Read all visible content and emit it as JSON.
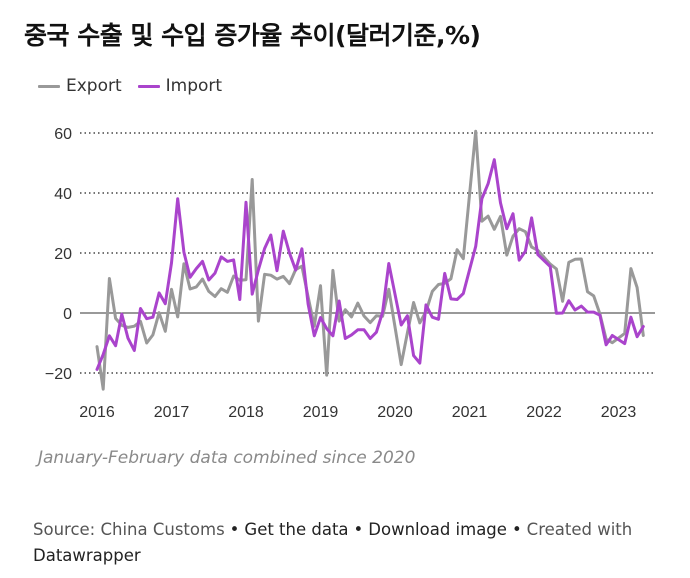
{
  "title": "중국 수출 및 수입 증가율 추이(달러기준,%)",
  "legend": [
    {
      "name": "Export",
      "color": "#999999"
    },
    {
      "name": "Import",
      "color": "#aa44cc"
    }
  ],
  "note": "January-February data combined since 2020",
  "source": {
    "prefix": "Source: China Customs",
    "get_data": "Get the data",
    "download": "Download image",
    "created_with": "Created with",
    "brand": "Datawrapper"
  },
  "chart_data": {
    "type": "line",
    "title": "중국 수출 및 수입 증가율 추이(달러기준,%)",
    "ylim": [
      -25,
      62
    ],
    "y_ticks": [
      -20,
      0,
      20,
      40,
      60
    ],
    "x_ticks": [
      "2016",
      "2017",
      "2018",
      "2019",
      "2020",
      "2021",
      "2022",
      "2023"
    ],
    "grid": "horizontal dotted",
    "legend_position": "top-left",
    "series": [
      {
        "name": "Export",
        "color": "#999999",
        "points": [
          [
            "2016-01",
            -11.2
          ],
          [
            "2016-02",
            -25.4
          ],
          [
            "2016-03",
            11.5
          ],
          [
            "2016-04",
            -1.8
          ],
          [
            "2016-05",
            -4.1
          ],
          [
            "2016-06",
            -4.8
          ],
          [
            "2016-07",
            -4.4
          ],
          [
            "2016-08",
            -2.8
          ],
          [
            "2016-09",
            -10.0
          ],
          [
            "2016-10",
            -7.3
          ],
          [
            "2016-11",
            0.1
          ],
          [
            "2016-12",
            -6.1
          ],
          [
            "2017-01",
            7.9
          ],
          [
            "2017-02",
            -1.3
          ],
          [
            "2017-03",
            16.4
          ],
          [
            "2017-04",
            8.0
          ],
          [
            "2017-05",
            8.7
          ],
          [
            "2017-06",
            11.3
          ],
          [
            "2017-07",
            7.2
          ],
          [
            "2017-08",
            5.5
          ],
          [
            "2017-09",
            8.1
          ],
          [
            "2017-10",
            6.9
          ],
          [
            "2017-11",
            12.3
          ],
          [
            "2017-12",
            10.9
          ],
          [
            "2018-01",
            11.1
          ],
          [
            "2018-02",
            44.5
          ],
          [
            "2018-03",
            -2.7
          ],
          [
            "2018-04",
            12.9
          ],
          [
            "2018-05",
            12.6
          ],
          [
            "2018-06",
            11.3
          ],
          [
            "2018-07",
            12.2
          ],
          [
            "2018-08",
            9.8
          ],
          [
            "2018-09",
            14.5
          ],
          [
            "2018-10",
            15.6
          ],
          [
            "2018-11",
            5.4
          ],
          [
            "2018-12",
            -4.4
          ],
          [
            "2019-01",
            9.1
          ],
          [
            "2019-02",
            -20.7
          ],
          [
            "2019-03",
            14.2
          ],
          [
            "2019-04",
            -2.7
          ],
          [
            "2019-05",
            1.1
          ],
          [
            "2019-06",
            -1.3
          ],
          [
            "2019-07",
            3.3
          ],
          [
            "2019-08",
            -1.0
          ],
          [
            "2019-09",
            -3.2
          ],
          [
            "2019-10",
            -0.9
          ],
          [
            "2019-11",
            -1.1
          ],
          [
            "2019-12",
            7.9
          ],
          [
            "2020-02",
            -17.2
          ],
          [
            "2020-03",
            -6.6
          ],
          [
            "2020-04",
            3.5
          ],
          [
            "2020-05",
            -3.3
          ],
          [
            "2020-06",
            0.5
          ],
          [
            "2020-07",
            7.2
          ],
          [
            "2020-08",
            9.5
          ],
          [
            "2020-09",
            9.9
          ],
          [
            "2020-10",
            11.4
          ],
          [
            "2020-11",
            21.1
          ],
          [
            "2020-12",
            18.1
          ],
          [
            "2021-02",
            60.6
          ],
          [
            "2021-03",
            30.6
          ],
          [
            "2021-04",
            32.3
          ],
          [
            "2021-05",
            27.9
          ],
          [
            "2021-06",
            32.2
          ],
          [
            "2021-07",
            19.3
          ],
          [
            "2021-08",
            25.6
          ],
          [
            "2021-09",
            28.1
          ],
          [
            "2021-10",
            27.1
          ],
          [
            "2021-11",
            22.0
          ],
          [
            "2021-12",
            20.9
          ],
          [
            "2022-02",
            16.3
          ],
          [
            "2022-03",
            14.7
          ],
          [
            "2022-04",
            3.9
          ],
          [
            "2022-05",
            16.9
          ],
          [
            "2022-06",
            17.9
          ],
          [
            "2022-07",
            18.0
          ],
          [
            "2022-08",
            7.1
          ],
          [
            "2022-09",
            5.7
          ],
          [
            "2022-10",
            -0.3
          ],
          [
            "2022-11",
            -8.7
          ],
          [
            "2022-12",
            -9.9
          ],
          [
            "2023-02",
            -6.8
          ],
          [
            "2023-03",
            14.8
          ],
          [
            "2023-04",
            8.5
          ],
          [
            "2023-05",
            -7.5
          ]
        ]
      },
      {
        "name": "Import",
        "color": "#aa44cc",
        "points": [
          [
            "2016-01",
            -18.8
          ],
          [
            "2016-02",
            -13.8
          ],
          [
            "2016-03",
            -7.6
          ],
          [
            "2016-04",
            -10.9
          ],
          [
            "2016-05",
            -0.4
          ],
          [
            "2016-06",
            -8.4
          ],
          [
            "2016-07",
            -12.5
          ],
          [
            "2016-08",
            1.5
          ],
          [
            "2016-09",
            -1.9
          ],
          [
            "2016-10",
            -1.4
          ],
          [
            "2016-11",
            6.7
          ],
          [
            "2016-12",
            3.1
          ],
          [
            "2017-01",
            16.7
          ],
          [
            "2017-02",
            38.1
          ],
          [
            "2017-03",
            20.3
          ],
          [
            "2017-04",
            11.9
          ],
          [
            "2017-05",
            14.8
          ],
          [
            "2017-06",
            17.2
          ],
          [
            "2017-07",
            11.0
          ],
          [
            "2017-08",
            13.3
          ],
          [
            "2017-09",
            18.7
          ],
          [
            "2017-10",
            17.2
          ],
          [
            "2017-11",
            17.7
          ],
          [
            "2017-12",
            4.5
          ],
          [
            "2018-01",
            36.9
          ],
          [
            "2018-02",
            6.3
          ],
          [
            "2018-03",
            14.4
          ],
          [
            "2018-04",
            21.5
          ],
          [
            "2018-05",
            26.0
          ],
          [
            "2018-06",
            14.1
          ],
          [
            "2018-07",
            27.3
          ],
          [
            "2018-08",
            20.0
          ],
          [
            "2018-09",
            14.3
          ],
          [
            "2018-10",
            21.4
          ],
          [
            "2018-11",
            3.0
          ],
          [
            "2018-12",
            -7.6
          ],
          [
            "2019-01",
            -1.5
          ],
          [
            "2019-02",
            -5.2
          ],
          [
            "2019-03",
            -7.6
          ],
          [
            "2019-04",
            4.0
          ],
          [
            "2019-05",
            -8.5
          ],
          [
            "2019-06",
            -7.3
          ],
          [
            "2019-07",
            -5.6
          ],
          [
            "2019-08",
            -5.6
          ],
          [
            "2019-09",
            -8.5
          ],
          [
            "2019-10",
            -6.4
          ],
          [
            "2019-11",
            0.3
          ],
          [
            "2019-12",
            16.5
          ],
          [
            "2020-02",
            -4.0
          ],
          [
            "2020-03",
            -0.9
          ],
          [
            "2020-04",
            -14.2
          ],
          [
            "2020-05",
            -16.7
          ],
          [
            "2020-06",
            2.7
          ],
          [
            "2020-07",
            -1.4
          ],
          [
            "2020-08",
            -2.1
          ],
          [
            "2020-09",
            13.2
          ],
          [
            "2020-10",
            4.7
          ],
          [
            "2020-11",
            4.5
          ],
          [
            "2020-12",
            6.5
          ],
          [
            "2021-02",
            22.2
          ],
          [
            "2021-03",
            38.1
          ],
          [
            "2021-04",
            43.1
          ],
          [
            "2021-05",
            51.1
          ],
          [
            "2021-06",
            36.7
          ],
          [
            "2021-07",
            28.1
          ],
          [
            "2021-08",
            33.1
          ],
          [
            "2021-09",
            17.6
          ],
          [
            "2021-10",
            20.6
          ],
          [
            "2021-11",
            31.7
          ],
          [
            "2021-12",
            19.5
          ],
          [
            "2022-02",
            15.5
          ],
          [
            "2022-03",
            -0.1
          ],
          [
            "2022-04",
            0.0
          ],
          [
            "2022-05",
            4.1
          ],
          [
            "2022-06",
            1.0
          ],
          [
            "2022-07",
            2.3
          ],
          [
            "2022-08",
            0.3
          ],
          [
            "2022-09",
            0.3
          ],
          [
            "2022-10",
            -0.7
          ],
          [
            "2022-11",
            -10.6
          ],
          [
            "2022-12",
            -7.5
          ],
          [
            "2023-02",
            -10.2
          ],
          [
            "2023-03",
            -1.4
          ],
          [
            "2023-04",
            -7.9
          ],
          [
            "2023-05",
            -4.5
          ]
        ]
      }
    ]
  }
}
